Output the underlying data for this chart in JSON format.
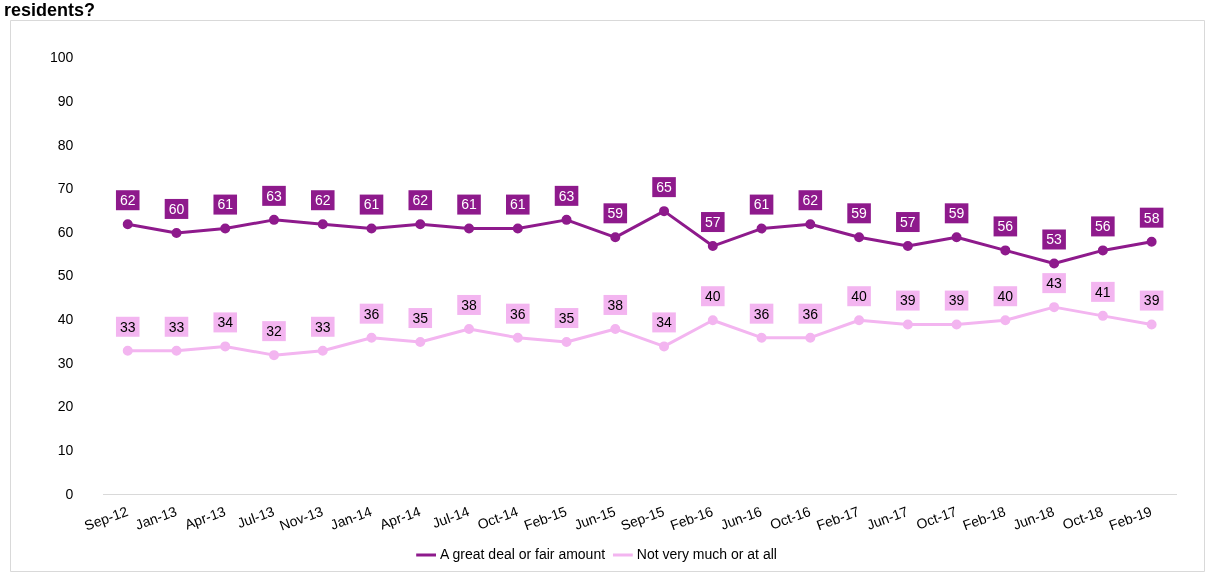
{
  "chart_data": {
    "type": "line",
    "title": "residents?",
    "categories": [
      "Sep-12",
      "Jan-13",
      "Apr-13",
      "Jul-13",
      "Nov-13",
      "Jan-14",
      "Apr-14",
      "Jul-14",
      "Oct-14",
      "Feb-15",
      "Jun-15",
      "Sep-15",
      "Feb-16",
      "Jun-16",
      "Oct-16",
      "Feb-17",
      "Jun-17",
      "Oct-17",
      "Feb-18",
      "Jun-18",
      "Oct-18",
      "Feb-19"
    ],
    "series": [
      {
        "name": "A great deal or fair amount",
        "color": "#8e1a8c",
        "values": [
          62,
          60,
          61,
          63,
          62,
          61,
          62,
          61,
          61,
          63,
          59,
          65,
          57,
          61,
          62,
          59,
          57,
          59,
          56,
          53,
          56,
          58
        ]
      },
      {
        "name": "Not very much or at all",
        "color": "#f3b5f0",
        "values": [
          33,
          33,
          34,
          32,
          33,
          36,
          35,
          38,
          36,
          35,
          38,
          34,
          40,
          36,
          36,
          40,
          39,
          39,
          40,
          43,
          41,
          39
        ]
      }
    ],
    "ylim": [
      0,
      100
    ],
    "yticks": [
      0,
      10,
      20,
      30,
      40,
      50,
      60,
      70,
      80,
      90,
      100
    ],
    "grid": false,
    "legend": "bottom",
    "marker": "circle",
    "line_style": "solid",
    "data_labels": true
  }
}
